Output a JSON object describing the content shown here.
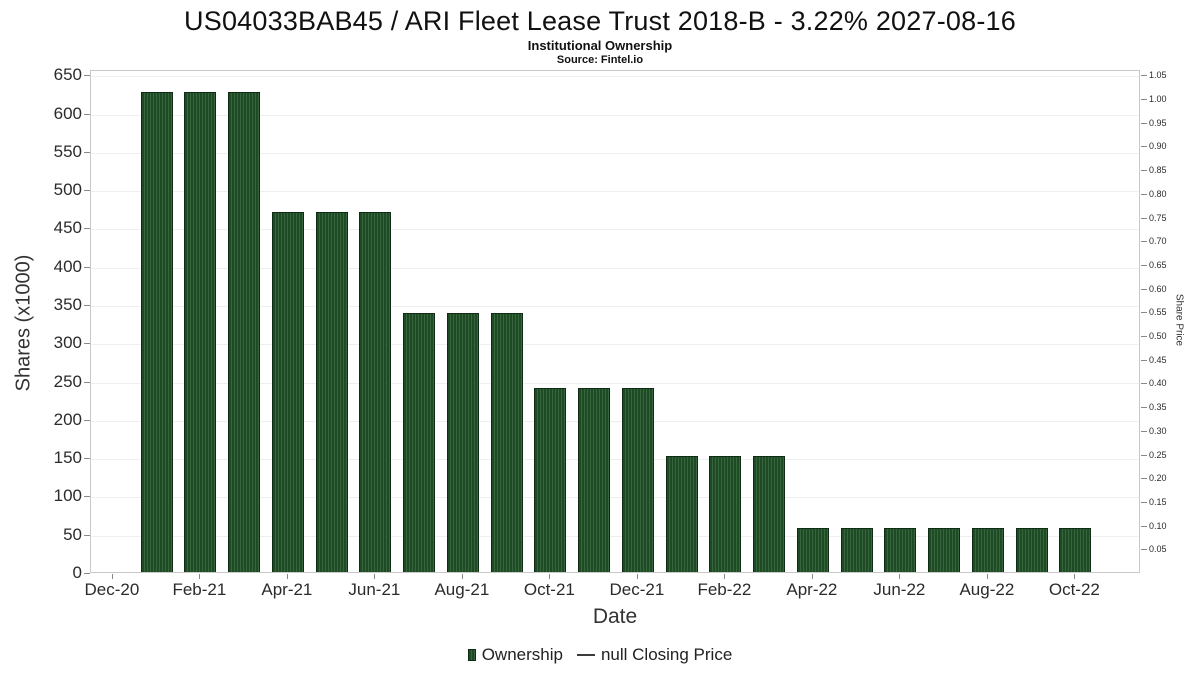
{
  "chart_data": {
    "type": "bar",
    "title": "US04033BAB45 / ARI Fleet Lease Trust 2018-B - 3.22% 2027-08-16",
    "subtitle": "Institutional Ownership",
    "source": "Source: Fintel.io",
    "xlabel": "Date",
    "ylabel_left": "Shares (x1000)",
    "ylabel_right": "Share Price",
    "series_name": "Ownership",
    "categories": [
      "Jan-21",
      "Feb-21",
      "Mar-21",
      "Apr-21",
      "May-21",
      "Jun-21",
      "Jul-21",
      "Aug-21",
      "Sep-21",
      "Oct-21",
      "Nov-21",
      "Dec-21",
      "Jan-22",
      "Feb-22",
      "Mar-22",
      "Apr-22",
      "May-22",
      "Jun-22",
      "Jul-22",
      "Aug-22",
      "Sep-22",
      "Oct-22"
    ],
    "values": [
      627,
      627,
      627,
      470,
      470,
      470,
      338,
      338,
      338,
      240,
      240,
      240,
      152,
      152,
      152,
      57,
      57,
      57,
      57,
      57,
      57,
      57
    ],
    "x_tick_labels": [
      "Dec-20",
      "Feb-21",
      "Apr-21",
      "Jun-21",
      "Aug-21",
      "Oct-21",
      "Dec-21",
      "Feb-22",
      "Apr-22",
      "Jun-22",
      "Aug-22",
      "Oct-22"
    ],
    "y_left_ticks": [
      0,
      50,
      100,
      150,
      200,
      250,
      300,
      350,
      400,
      450,
      500,
      550,
      600,
      650
    ],
    "y_right_ticks": [
      0.05,
      0.1,
      0.15,
      0.2,
      0.25,
      0.3,
      0.35,
      0.4,
      0.45,
      0.5,
      0.55,
      0.6,
      0.65,
      0.7,
      0.75,
      0.8,
      0.85,
      0.9,
      0.95,
      1.0,
      1.05
    ],
    "ylim_left": [
      0,
      657
    ],
    "ylim_right": [
      0,
      1.0613
    ],
    "grid": true,
    "legend_position": "bottom",
    "bar_color": "#1e4a26",
    "bar_stripe_color": "#35663c",
    "legend": [
      {
        "label": "Ownership",
        "marker": "bar"
      },
      {
        "label": "null Closing Price",
        "marker": "line"
      }
    ]
  }
}
